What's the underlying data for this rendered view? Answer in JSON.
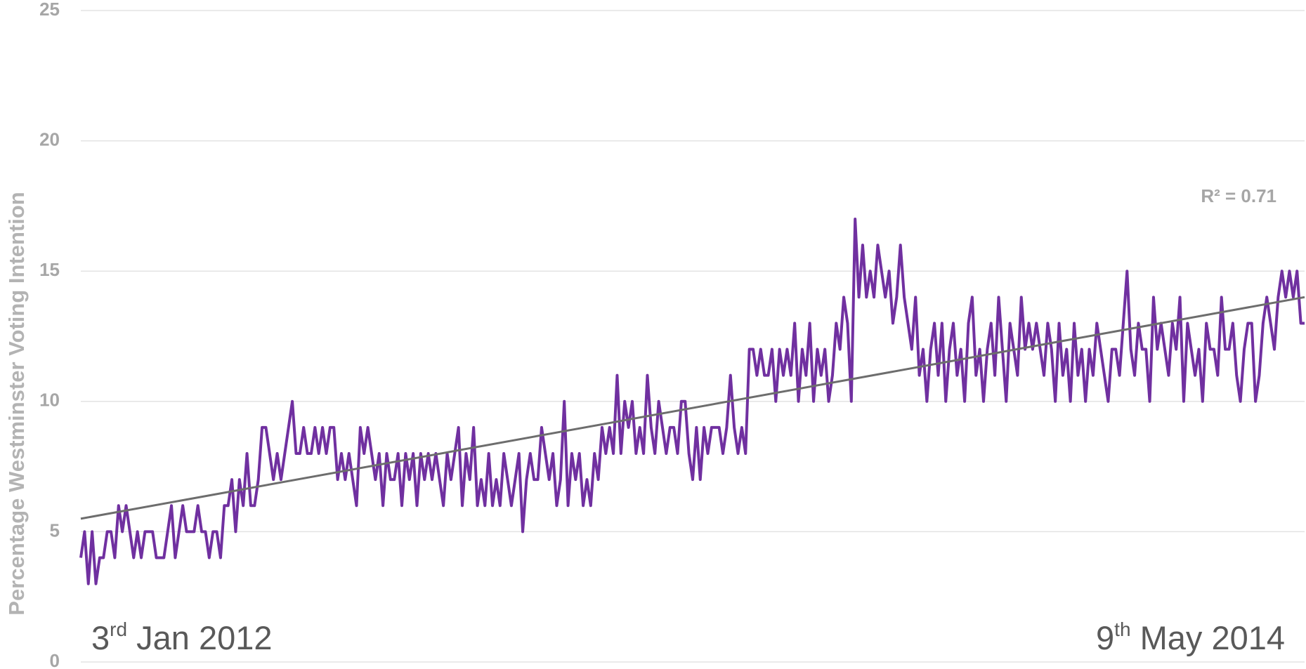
{
  "chart_data": {
    "type": "line",
    "y_label": "Percentage Westminster Voting Intention",
    "ylim": [
      0,
      25
    ],
    "yticks": [
      0,
      5,
      10,
      15,
      20,
      25
    ],
    "grid": true,
    "color": "#7030a0",
    "values": [
      4,
      5,
      3,
      5,
      3,
      4,
      4,
      5,
      5,
      4,
      6,
      5,
      6,
      5,
      4,
      5,
      4,
      5,
      5,
      5,
      4,
      4,
      4,
      5,
      6,
      4,
      5,
      6,
      5,
      5,
      5,
      6,
      5,
      5,
      4,
      5,
      5,
      4,
      6,
      6,
      7,
      5,
      7,
      6,
      8,
      6,
      6,
      7,
      9,
      9,
      8,
      7,
      8,
      7,
      8,
      9,
      10,
      8,
      8,
      9,
      8,
      8,
      9,
      8,
      9,
      8,
      9,
      9,
      7,
      8,
      7,
      8,
      7,
      6,
      9,
      8,
      9,
      8,
      7,
      8,
      6,
      8,
      7,
      7,
      8,
      6,
      8,
      7,
      8,
      6,
      8,
      7,
      8,
      7,
      8,
      7,
      6,
      8,
      7,
      8,
      9,
      6,
      8,
      7,
      9,
      6,
      7,
      6,
      8,
      6,
      7,
      6,
      8,
      7,
      6,
      7,
      8,
      5,
      7,
      8,
      7,
      7,
      9,
      8,
      7,
      8,
      6,
      7,
      10,
      6,
      8,
      7,
      8,
      6,
      7,
      6,
      8,
      7,
      9,
      8,
      9,
      8,
      11,
      8,
      10,
      9,
      10,
      8,
      9,
      8,
      11,
      9,
      8,
      10,
      9,
      8,
      9,
      9,
      8,
      10,
      10,
      8,
      7,
      9,
      7,
      9,
      8,
      9,
      9,
      9,
      8,
      9,
      11,
      9,
      8,
      9,
      8,
      12,
      12,
      11,
      12,
      11,
      11,
      12,
      10,
      12,
      11,
      12,
      11,
      13,
      10,
      12,
      11,
      13,
      10,
      12,
      11,
      12,
      10,
      11,
      13,
      12,
      14,
      13,
      10,
      17,
      14,
      16,
      14,
      15,
      14,
      16,
      15,
      14,
      15,
      13,
      14,
      16,
      14,
      13,
      12,
      14,
      11,
      12,
      10,
      12,
      13,
      11,
      13,
      10,
      12,
      13,
      11,
      12,
      10,
      13,
      14,
      11,
      12,
      10,
      12,
      13,
      11,
      14,
      12,
      10,
      13,
      12,
      11,
      14,
      12,
      13,
      12,
      13,
      12,
      11,
      13,
      12,
      10,
      13,
      11,
      12,
      10,
      13,
      11,
      12,
      10,
      12,
      11,
      13,
      12,
      11,
      10,
      12,
      12,
      11,
      13,
      15,
      12,
      11,
      13,
      12,
      12,
      10,
      14,
      12,
      13,
      12,
      11,
      13,
      12,
      14,
      10,
      13,
      12,
      11,
      12,
      10,
      13,
      12,
      12,
      11,
      14,
      12,
      12,
      13,
      11,
      10,
      12,
      13,
      13,
      10,
      11,
      13,
      14,
      13,
      12,
      14,
      15,
      14,
      15,
      14,
      15,
      13,
      13
    ],
    "trendline": {
      "start": 5.5,
      "end": 14,
      "color": "#6d6d6d",
      "label": "R² = 0.71"
    },
    "date_labels": [
      {
        "pre": "3",
        "sup": "rd",
        "post": " Jan 2012"
      },
      {
        "pre": "9",
        "sup": "th",
        "post": " May 2014"
      }
    ]
  }
}
